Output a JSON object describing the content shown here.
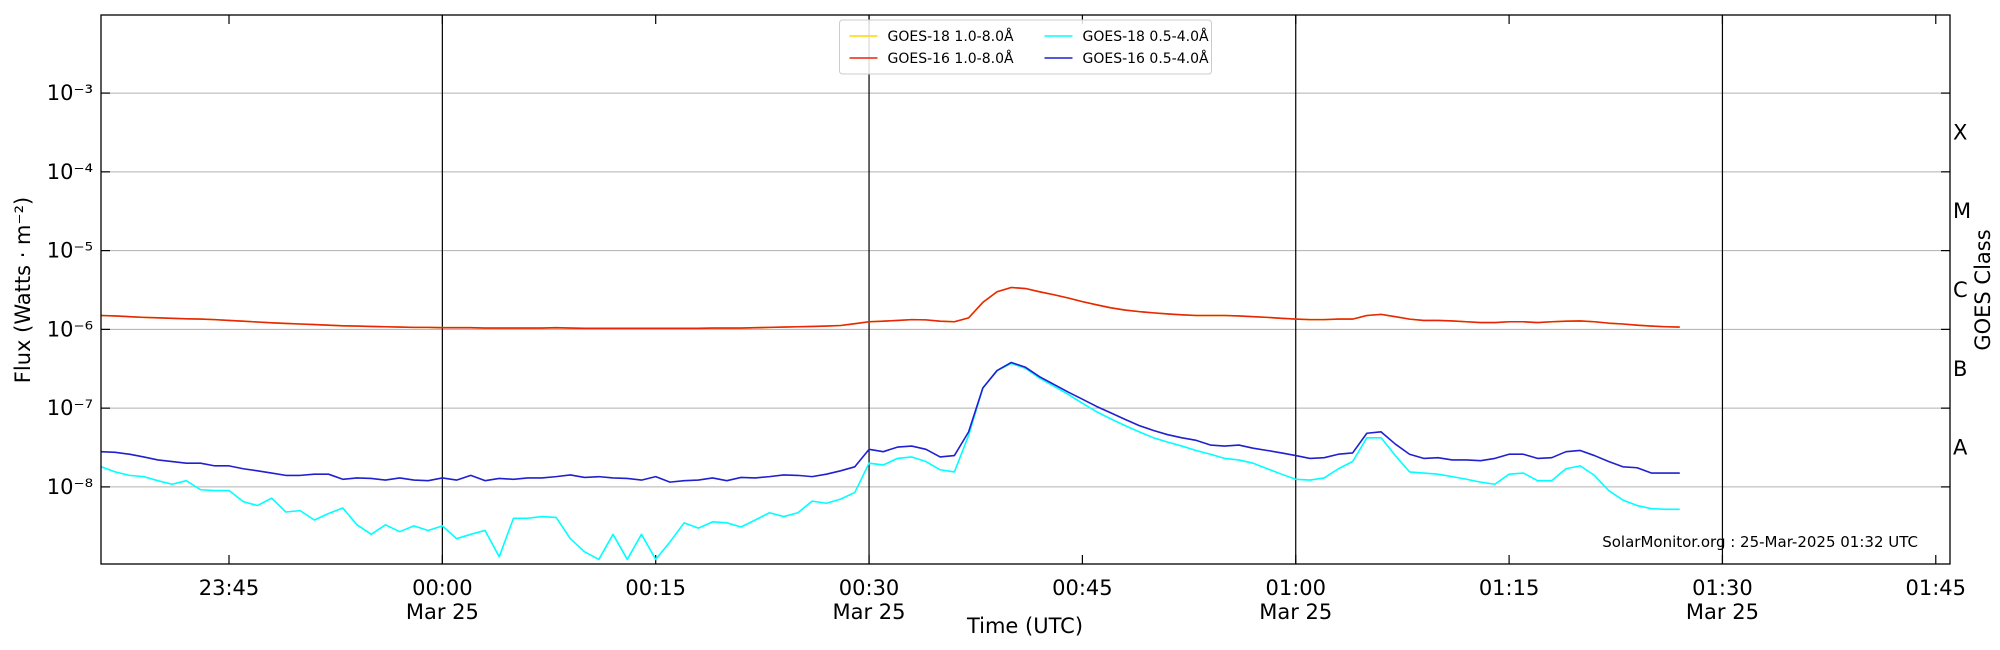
{
  "chart_data": {
    "type": "line",
    "x_label": "Time (UTC)",
    "y_label": "Flux (Watts · m⁻²)",
    "y2_label": "GOES Class",
    "annotation": "SolarMonitor.org : 25-Mar-2025 01:32 UTC",
    "log_y": true,
    "grid": true,
    "legend": "upper center",
    "xlim": [
      "23:36",
      "01:46"
    ],
    "xticks": [
      "23:45",
      {
        "value": "00:00",
        "label": "00:00\nMar 25"
      },
      "00:15",
      {
        "value": "00:30",
        "label": "00:30\nMar 25"
      },
      "00:45",
      {
        "value": "01:00",
        "label": "01:00\nMar 25"
      },
      "01:15",
      {
        "value": "01:30",
        "label": "01:30\nMar 25"
      },
      "01:45"
    ],
    "ylim": [
      1.05e-09,
      0.0098
    ],
    "yticks": [
      {
        "value": 1e-08,
        "label": "10⁻⁸"
      },
      {
        "value": 1e-07,
        "label": "10⁻⁷"
      },
      {
        "value": 1e-06,
        "label": "10⁻⁶"
      },
      {
        "value": 1e-05,
        "label": "10⁻⁵"
      },
      {
        "value": 0.0001,
        "label": "10⁻⁴"
      },
      {
        "value": 0.001,
        "label": "10⁻³"
      }
    ],
    "y2lim": [
      1.05e-09,
      0.0098
    ],
    "y2ticks": [
      {
        "value": 3.16e-08,
        "label": "A"
      },
      {
        "value": 3.16e-07,
        "label": "B"
      },
      {
        "value": 3.16e-06,
        "label": "C"
      },
      {
        "value": 3.16e-05,
        "label": "M"
      },
      {
        "value": 0.000316,
        "label": "X"
      }
    ],
    "x": [
      "23:36",
      "23:37",
      "23:38",
      "23:39",
      "23:40",
      "23:41",
      "23:42",
      "23:43",
      "23:44",
      "23:45",
      "23:46",
      "23:47",
      "23:48",
      "23:49",
      "23:50",
      "23:51",
      "23:52",
      "23:53",
      "23:54",
      "23:55",
      "23:56",
      "23:57",
      "23:58",
      "23:59",
      "00:00",
      "00:01",
      "00:02",
      "00:03",
      "00:04",
      "00:05",
      "00:06",
      "00:07",
      "00:08",
      "00:09",
      "00:10",
      "00:11",
      "00:12",
      "00:13",
      "00:14",
      "00:15",
      "00:16",
      "00:17",
      "00:18",
      "00:19",
      "00:20",
      "00:21",
      "00:22",
      "00:23",
      "00:24",
      "00:25",
      "00:26",
      "00:27",
      "00:28",
      "00:29",
      "00:30",
      "00:31",
      "00:32",
      "00:33",
      "00:34",
      "00:35",
      "00:36",
      "00:37",
      "00:38",
      "00:39",
      "00:40",
      "00:41",
      "00:42",
      "00:43",
      "00:44",
      "00:45",
      "00:46",
      "00:47",
      "00:48",
      "00:49",
      "00:50",
      "00:51",
      "00:52",
      "00:53",
      "00:54",
      "00:55",
      "00:56",
      "00:57",
      "00:58",
      "00:59",
      "01:00",
      "01:01",
      "01:02",
      "01:03",
      "01:04",
      "01:05",
      "01:06",
      "01:07",
      "01:08",
      "01:09",
      "01:10",
      "01:11",
      "01:12",
      "01:13",
      "01:14",
      "01:15",
      "01:16",
      "01:17",
      "01:18",
      "01:19",
      "01:20",
      "01:21",
      "01:22",
      "01:23",
      "01:24",
      "01:25",
      "01:26",
      "01:27"
    ],
    "series": [
      {
        "name": "GOES-18 1.0-8.0Å",
        "color": "#ffd700",
        "values": [
          1.5e-06,
          1.48e-06,
          1.45e-06,
          1.42e-06,
          1.4e-06,
          1.38e-06,
          1.36e-06,
          1.35e-06,
          1.33e-06,
          1.3e-06,
          1.27e-06,
          1.24e-06,
          1.21e-06,
          1.19e-06,
          1.17e-06,
          1.15e-06,
          1.13e-06,
          1.11e-06,
          1.1e-06,
          1.09e-06,
          1.08e-06,
          1.07e-06,
          1.06e-06,
          1.06e-06,
          1.05e-06,
          1.05e-06,
          1.05e-06,
          1.04e-06,
          1.04e-06,
          1.04e-06,
          1.04e-06,
          1.04e-06,
          1.05e-06,
          1.04e-06,
          1.03e-06,
          1.03e-06,
          1.03e-06,
          1.03e-06,
          1.03e-06,
          1.03e-06,
          1.03e-06,
          1.03e-06,
          1.03e-06,
          1.04e-06,
          1.04e-06,
          1.04e-06,
          1.05e-06,
          1.06e-06,
          1.07e-06,
          1.08e-06,
          1.09e-06,
          1.1e-06,
          1.12e-06,
          1.18e-06,
          1.25e-06,
          1.27e-06,
          1.3e-06,
          1.33e-06,
          1.32e-06,
          1.27e-06,
          1.25e-06,
          1.4e-06,
          2.2e-06,
          3e-06,
          3.4e-06,
          3.3e-06,
          3e-06,
          2.75e-06,
          2.5e-06,
          2.25e-06,
          2.05e-06,
          1.88e-06,
          1.76e-06,
          1.68e-06,
          1.62e-06,
          1.57e-06,
          1.53e-06,
          1.5e-06,
          1.5e-06,
          1.5e-06,
          1.48e-06,
          1.45e-06,
          1.42e-06,
          1.38e-06,
          1.35e-06,
          1.33e-06,
          1.33e-06,
          1.35e-06,
          1.35e-06,
          1.5e-06,
          1.55e-06,
          1.45e-06,
          1.35e-06,
          1.3e-06,
          1.3e-06,
          1.28e-06,
          1.25e-06,
          1.22e-06,
          1.22e-06,
          1.25e-06,
          1.25e-06,
          1.22e-06,
          1.25e-06,
          1.27e-06,
          1.28e-06,
          1.25e-06,
          1.2e-06,
          1.17e-06,
          1.13e-06,
          1.1e-06,
          1.08e-06,
          1.07e-06
        ]
      },
      {
        "name": "GOES-16 1.0-8.0Å",
        "color": "#e8250c",
        "values": [
          1.5e-06,
          1.48e-06,
          1.45e-06,
          1.42e-06,
          1.4e-06,
          1.38e-06,
          1.36e-06,
          1.35e-06,
          1.33e-06,
          1.3e-06,
          1.27e-06,
          1.24e-06,
          1.21e-06,
          1.19e-06,
          1.17e-06,
          1.15e-06,
          1.13e-06,
          1.11e-06,
          1.1e-06,
          1.09e-06,
          1.08e-06,
          1.07e-06,
          1.06e-06,
          1.06e-06,
          1.05e-06,
          1.05e-06,
          1.05e-06,
          1.04e-06,
          1.04e-06,
          1.04e-06,
          1.04e-06,
          1.04e-06,
          1.05e-06,
          1.04e-06,
          1.03e-06,
          1.03e-06,
          1.03e-06,
          1.03e-06,
          1.03e-06,
          1.03e-06,
          1.03e-06,
          1.03e-06,
          1.03e-06,
          1.04e-06,
          1.04e-06,
          1.04e-06,
          1.05e-06,
          1.06e-06,
          1.07e-06,
          1.08e-06,
          1.09e-06,
          1.1e-06,
          1.12e-06,
          1.18e-06,
          1.25e-06,
          1.27e-06,
          1.3e-06,
          1.33e-06,
          1.32e-06,
          1.27e-06,
          1.25e-06,
          1.4e-06,
          2.2e-06,
          3e-06,
          3.4e-06,
          3.3e-06,
          3e-06,
          2.75e-06,
          2.5e-06,
          2.25e-06,
          2.05e-06,
          1.88e-06,
          1.76e-06,
          1.68e-06,
          1.62e-06,
          1.57e-06,
          1.53e-06,
          1.5e-06,
          1.5e-06,
          1.5e-06,
          1.48e-06,
          1.45e-06,
          1.42e-06,
          1.38e-06,
          1.35e-06,
          1.33e-06,
          1.33e-06,
          1.35e-06,
          1.35e-06,
          1.5e-06,
          1.55e-06,
          1.45e-06,
          1.35e-06,
          1.3e-06,
          1.3e-06,
          1.28e-06,
          1.25e-06,
          1.22e-06,
          1.22e-06,
          1.25e-06,
          1.25e-06,
          1.22e-06,
          1.25e-06,
          1.27e-06,
          1.28e-06,
          1.25e-06,
          1.2e-06,
          1.17e-06,
          1.13e-06,
          1.1e-06,
          1.08e-06,
          1.07e-06
        ]
      },
      {
        "name": "GOES-18 0.5-4.0Å",
        "color": "#00ffff",
        "values": [
          1.8e-08,
          1.55e-08,
          1.4e-08,
          1.35e-08,
          1.2e-08,
          1.08e-08,
          1.2e-08,
          9.2e-09,
          9e-09,
          9e-09,
          6.5e-09,
          5.8e-09,
          7.2e-09,
          4.8e-09,
          5e-09,
          3.8e-09,
          4.6e-09,
          5.4e-09,
          3.3e-09,
          2.5e-09,
          3.3e-09,
          2.7e-09,
          3.2e-09,
          2.8e-09,
          3.2e-09,
          2.2e-09,
          2.5e-09,
          2.8e-09,
          1.3e-09,
          4e-09,
          4e-09,
          4.2e-09,
          4.1e-09,
          2.2e-09,
          1.5e-09,
          1.2e-09,
          2.5e-09,
          1.2e-09,
          2.5e-09,
          1.2e-09,
          2e-09,
          3.5e-09,
          3e-09,
          3.6e-09,
          3.5e-09,
          3.1e-09,
          3.8e-09,
          4.7e-09,
          4.2e-09,
          4.7e-09,
          6.6e-09,
          6.2e-09,
          7e-09,
          8.5e-09,
          2e-08,
          1.9e-08,
          2.3e-08,
          2.4e-08,
          2.1e-08,
          1.65e-08,
          1.55e-08,
          4.5e-08,
          1.8e-07,
          3e-07,
          3.7e-07,
          3.2e-07,
          2.4e-07,
          1.9e-07,
          1.5e-07,
          1.15e-07,
          9e-08,
          7.3e-08,
          6e-08,
          5e-08,
          4.2e-08,
          3.7e-08,
          3.3e-08,
          2.9e-08,
          2.6e-08,
          2.3e-08,
          2.2e-08,
          2e-08,
          1.7e-08,
          1.45e-08,
          1.25e-08,
          1.22e-08,
          1.3e-08,
          1.7e-08,
          2.1e-08,
          4.2e-08,
          4.2e-08,
          2.5e-08,
          1.55e-08,
          1.5e-08,
          1.45e-08,
          1.35e-08,
          1.25e-08,
          1.15e-08,
          1.08e-08,
          1.45e-08,
          1.5e-08,
          1.2e-08,
          1.2e-08,
          1.7e-08,
          1.85e-08,
          1.4e-08,
          9e-09,
          6.8e-09,
          5.8e-09,
          5.3e-09,
          5.2e-09,
          5.2e-09
        ]
      },
      {
        "name": "GOES-16 0.5-4.0Å",
        "color": "#2020d0",
        "values": [
          2.8e-08,
          2.75e-08,
          2.6e-08,
          2.4e-08,
          2.2e-08,
          2.1e-08,
          2e-08,
          2e-08,
          1.85e-08,
          1.85e-08,
          1.7e-08,
          1.6e-08,
          1.5e-08,
          1.4e-08,
          1.4e-08,
          1.45e-08,
          1.45e-08,
          1.25e-08,
          1.3e-08,
          1.28e-08,
          1.22e-08,
          1.3e-08,
          1.22e-08,
          1.2e-08,
          1.3e-08,
          1.22e-08,
          1.4e-08,
          1.2e-08,
          1.28e-08,
          1.25e-08,
          1.3e-08,
          1.3e-08,
          1.35e-08,
          1.42e-08,
          1.32e-08,
          1.35e-08,
          1.3e-08,
          1.28e-08,
          1.22e-08,
          1.35e-08,
          1.15e-08,
          1.2e-08,
          1.22e-08,
          1.3e-08,
          1.2e-08,
          1.32e-08,
          1.3e-08,
          1.35e-08,
          1.42e-08,
          1.4e-08,
          1.35e-08,
          1.45e-08,
          1.6e-08,
          1.8e-08,
          3e-08,
          2.8e-08,
          3.2e-08,
          3.3e-08,
          3e-08,
          2.4e-08,
          2.5e-08,
          5e-08,
          1.8e-07,
          3e-07,
          3.8e-07,
          3.3e-07,
          2.5e-07,
          2e-07,
          1.6e-07,
          1.3e-07,
          1.05e-07,
          8.7e-08,
          7.2e-08,
          6e-08,
          5.2e-08,
          4.6e-08,
          4.2e-08,
          3.9e-08,
          3.4e-08,
          3.3e-08,
          3.4e-08,
          3.1e-08,
          2.9e-08,
          2.7e-08,
          2.5e-08,
          2.3e-08,
          2.35e-08,
          2.6e-08,
          2.7e-08,
          4.8e-08,
          5e-08,
          3.5e-08,
          2.6e-08,
          2.3e-08,
          2.35e-08,
          2.2e-08,
          2.2e-08,
          2.15e-08,
          2.3e-08,
          2.6e-08,
          2.6e-08,
          2.3e-08,
          2.35e-08,
          2.8e-08,
          2.9e-08,
          2.5e-08,
          2.1e-08,
          1.8e-08,
          1.75e-08,
          1.5e-08,
          1.5e-08,
          1.5e-08
        ]
      }
    ]
  }
}
